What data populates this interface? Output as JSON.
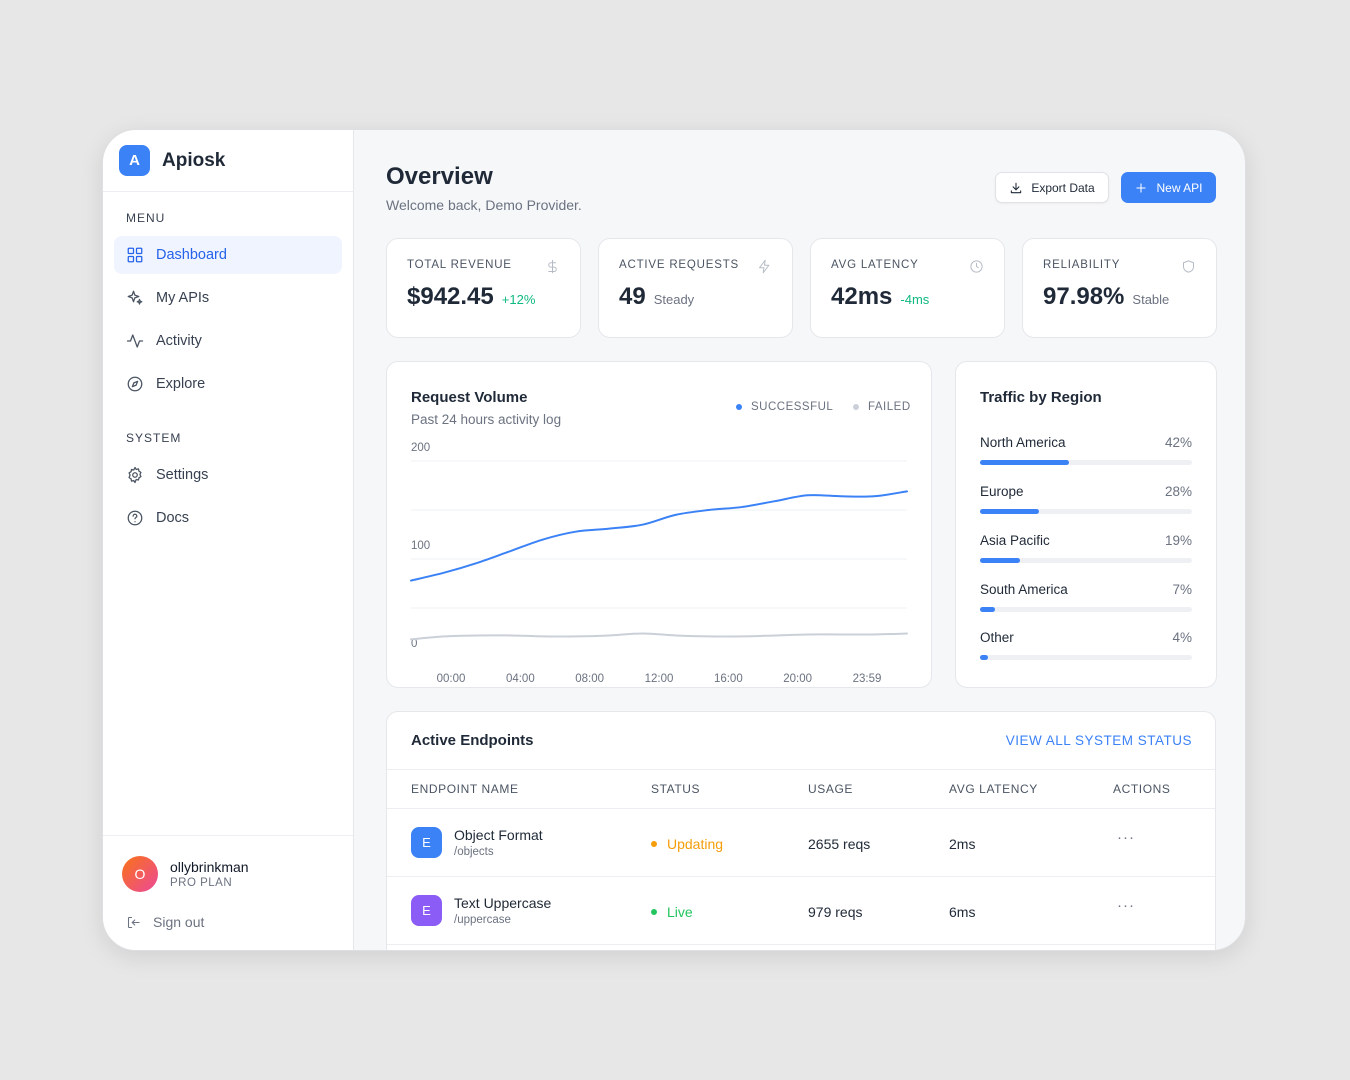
{
  "brand": {
    "logo_letter": "A",
    "name": "Apiosk"
  },
  "sidebar": {
    "menu_label": "MENU",
    "menu_items": [
      {
        "label": "Dashboard",
        "icon": "grid-icon",
        "active": true
      },
      {
        "label": "My APIs",
        "icon": "sparkles-icon"
      },
      {
        "label": "Activity",
        "icon": "activity-icon"
      },
      {
        "label": "Explore",
        "icon": "compass-icon"
      }
    ],
    "system_label": "SYSTEM",
    "system_items": [
      {
        "label": "Settings",
        "icon": "gear-icon"
      },
      {
        "label": "Docs",
        "icon": "help-circle-icon"
      }
    ],
    "user": {
      "initial": "O",
      "name": "ollybrinkman",
      "plan": "PRO PLAN"
    },
    "signout_label": "Sign out"
  },
  "header": {
    "title": "Overview",
    "subtitle": "Welcome back, Demo Provider.",
    "export_label": "Export Data",
    "new_label": "New API"
  },
  "stats": [
    {
      "label": "TOTAL REVENUE",
      "value": "$942.45",
      "sub": "+12%",
      "positive": true,
      "icon": "dollar-icon"
    },
    {
      "label": "ACTIVE REQUESTS",
      "value": "49",
      "sub": "Steady",
      "positive": false,
      "icon": "bolt-icon"
    },
    {
      "label": "AVG LATENCY",
      "value": "42ms",
      "sub": "-4ms",
      "positive": true,
      "icon": "clock-icon"
    },
    {
      "label": "RELIABILITY",
      "value": "97.98%",
      "sub": "Stable",
      "positive": false,
      "icon": "shield-icon"
    }
  ],
  "colors": {
    "accent": "#3b82f6",
    "failed": "#cbd0d8",
    "live": "#22c55e",
    "updating": "#f59e0b"
  },
  "chart_data": {
    "type": "line",
    "title": "Request Volume",
    "subtitle": "Past 24 hours activity log",
    "ylim": [
      0,
      200
    ],
    "y_ticks": [
      "0",
      "100",
      "200"
    ],
    "x_tick_labels": [
      "00:00",
      "04:00",
      "08:00",
      "12:00",
      "16:00",
      "20:00",
      "23:59"
    ],
    "grid": true,
    "legend_position": "top-right",
    "series": [
      {
        "name": "SUCCESSFUL",
        "color": "#3b82f6",
        "values": [
          78,
          86,
          96,
          108,
          120,
          128,
          131,
          135,
          145,
          150,
          153,
          159,
          165,
          164,
          164,
          169
        ]
      },
      {
        "name": "FAILED",
        "color": "#cbd0d8",
        "values": [
          18,
          21,
          22,
          22,
          21,
          21,
          22,
          24,
          22,
          21,
          21,
          22,
          23,
          23,
          23,
          24
        ]
      }
    ]
  },
  "regions": {
    "title": "Traffic by Region",
    "items": [
      {
        "name": "North America",
        "pct_label": "42%",
        "pct": 42
      },
      {
        "name": "Europe",
        "pct_label": "28%",
        "pct": 28
      },
      {
        "name": "Asia Pacific",
        "pct_label": "19%",
        "pct": 19
      },
      {
        "name": "South America",
        "pct_label": "7%",
        "pct": 7
      },
      {
        "name": "Other",
        "pct_label": "4%",
        "pct": 4
      }
    ]
  },
  "endpoints": {
    "title": "Active Endpoints",
    "view_all": "VIEW ALL SYSTEM STATUS",
    "columns": [
      "ENDPOINT NAME",
      "STATUS",
      "USAGE",
      "AVG LATENCY",
      "ACTIONS"
    ],
    "rows": [
      {
        "badge": "E",
        "badge_color": "#3b82f6",
        "name": "Object Format",
        "path": "/objects",
        "status": "Updating",
        "status_color": "#f59e0b",
        "usage": "2655 reqs",
        "latency": "2ms",
        "actions": "···"
      },
      {
        "badge": "E",
        "badge_color": "#8b5cf6",
        "name": "Text Uppercase",
        "path": "/uppercase",
        "status": "Live",
        "status_color": "#22c55e",
        "usage": "979 reqs",
        "latency": "6ms",
        "actions": "···"
      }
    ]
  }
}
